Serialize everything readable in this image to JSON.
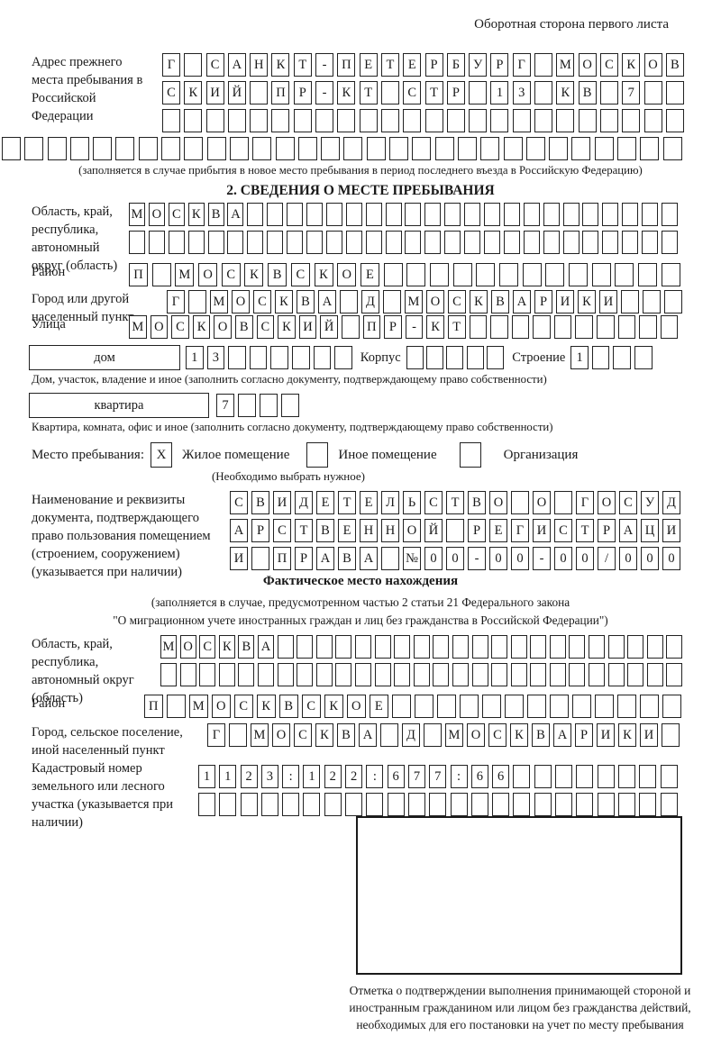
{
  "page": {
    "header_note": "Оборотная сторона первого листа"
  },
  "prev_address": {
    "label": "Адрес прежнего места пребывания в Российской Федерации",
    "rows": [
      {
        "text": "Г САНКТ-ПЕТЕРБУРГ МОСКОВ",
        "len": 24
      },
      {
        "text": "СКИЙ ПР-КТ СТР 13 КВ 7",
        "len": 24
      },
      {
        "text": "",
        "len": 24
      }
    ],
    "overflow_row": {
      "text": "",
      "len": 30
    },
    "note": "(заполняется в случае прибытия в новое место пребывания в период последнего въезда в Российскую Федерацию)"
  },
  "section2": {
    "title": "2. СВЕДЕНИЯ О МЕСТЕ ПРЕБЫВАНИЯ",
    "region": {
      "label": "Область, край, республика, автономный округ (область)",
      "rows": [
        {
          "text": "МОСКВА",
          "len": 28
        },
        {
          "text": "",
          "len": 28
        }
      ]
    },
    "district": {
      "label": "Район",
      "row": {
        "text": "П МОСКВСКОЕ",
        "len": 24
      }
    },
    "city": {
      "label": "Город или другой населенный пункт",
      "row": {
        "text": "Г МОСКВА Д МОСКВАРИКИ",
        "len": 24
      }
    },
    "street": {
      "label": "Улица",
      "row": {
        "text": "МОСКОВСКИЙ ПР-КТ",
        "len": 26
      }
    },
    "house": {
      "box_label": "дом",
      "cells": {
        "text": "13",
        "len": 8
      },
      "korpus_label": "Корпус",
      "korpus_cells": {
        "text": "",
        "len": 5
      },
      "stroenie_label": "Строение",
      "stroenie_cells": {
        "text": "1",
        "len": 4
      },
      "note": "Дом, участок, владение и иное (заполнить согласно документу, подтверждающему право собственности)"
    },
    "apartment": {
      "box_label": "квартира",
      "cells": {
        "text": "7",
        "len": 4
      },
      "note": "Квартира, комната, офис и иное (заполнить согласно документу, подтверждающему право собственности)"
    },
    "stay_type": {
      "label": "Место пребывания:",
      "options": [
        {
          "label": "Жилое помещение",
          "mark": "X"
        },
        {
          "label": "Иное помещение",
          "mark": ""
        },
        {
          "label": "Организация",
          "mark": ""
        }
      ],
      "note": "(Необходимо выбрать нужное)"
    },
    "document": {
      "label": "Наименование и реквизиты документа, подтверждающего право пользования помещением (строением, сооружением) (указывается при наличии)",
      "rows": [
        {
          "text": "СВИДЕТЕЛЬСТВО О ГОСУД",
          "len": 21
        },
        {
          "text": "АРСТВЕННОЙ РЕГИСТРАЦИ",
          "len": 21
        },
        {
          "text": "И ПРАВА №00-00-00/000",
          "len": 21
        }
      ]
    }
  },
  "fact": {
    "title": "Фактическое место нахождения",
    "note1": "(заполняется в случае, предусмотренном частью 2 статьи 21 Федерального закона",
    "note2": "\"О миграционном учете иностранных граждан и лиц без гражданства в Российской Федерации\")",
    "region": {
      "label": "Область, край, республика, автономный округ (область)",
      "rows": [
        {
          "text": "МОСКВА",
          "len": 27
        },
        {
          "text": "",
          "len": 27
        }
      ]
    },
    "district": {
      "label": "Район",
      "row": {
        "text": "П МОСКВСКОЕ",
        "len": 24
      }
    },
    "city": {
      "label": "Город, сельское поселение, иной населенный пункт",
      "row": {
        "text": "Г МОСКВА Д МОСКВАРИКИ",
        "len": 22
      }
    },
    "cadastral": {
      "label": "Кадастровый номер земельного или лесного участка (указывается при наличии)",
      "rows": [
        {
          "text": "1123:122:677:66",
          "len": 23
        },
        {
          "text": "",
          "len": 23
        }
      ]
    }
  },
  "confirmation": {
    "note": "Отметка о подтверждении выполнения принимающей стороной и иностранным гражданином или лицом без гражданства действий, необходимых для его постановки на учет по месту пребывания"
  }
}
